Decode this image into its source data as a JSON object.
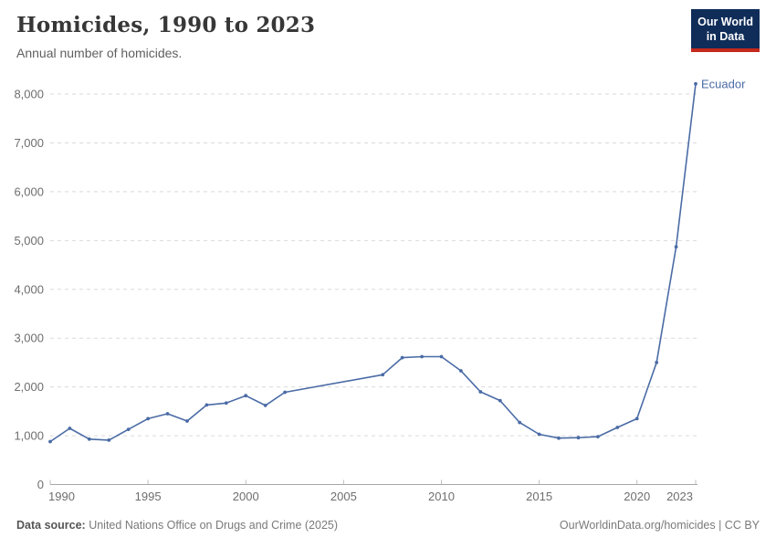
{
  "header": {
    "title": "Homicides, 1990 to 2023",
    "subtitle": "Annual number of homicides.",
    "logo_line1": "Our World",
    "logo_line2": "in Data"
  },
  "chart_data": {
    "type": "line",
    "title": "Homicides, 1990 to 2023",
    "subtitle": "Annual number of homicides.",
    "xlabel": "",
    "ylabel": "",
    "xlim": [
      1990,
      2023
    ],
    "ylim": [
      0,
      8000
    ],
    "xticks": [
      1990,
      1995,
      2000,
      2005,
      2010,
      2015,
      2020,
      2023
    ],
    "yticks": [
      0,
      1000,
      2000,
      3000,
      4000,
      5000,
      6000,
      7000,
      8000
    ],
    "grid": "horizontal-dashed",
    "legend_position": "end-of-line",
    "note": "no data markers between 2002 and 2007; straight interpolated segment",
    "series": [
      {
        "name": "Ecuador",
        "color": "#4a6ba5",
        "points": [
          [
            1990,
            880
          ],
          [
            1991,
            1150
          ],
          [
            1992,
            930
          ],
          [
            1993,
            910
          ],
          [
            1994,
            1130
          ],
          [
            1995,
            1350
          ],
          [
            1996,
            1450
          ],
          [
            1997,
            1300
          ],
          [
            1998,
            1630
          ],
          [
            1999,
            1670
          ],
          [
            2000,
            1820
          ],
          [
            2001,
            1620
          ],
          [
            2002,
            1890
          ],
          [
            2007,
            2250
          ],
          [
            2008,
            2600
          ],
          [
            2009,
            2620
          ],
          [
            2010,
            2620
          ],
          [
            2011,
            2330
          ],
          [
            2012,
            1900
          ],
          [
            2013,
            1720
          ],
          [
            2014,
            1270
          ],
          [
            2015,
            1030
          ],
          [
            2016,
            950
          ],
          [
            2017,
            960
          ],
          [
            2018,
            980
          ],
          [
            2019,
            1170
          ],
          [
            2020,
            1350
          ],
          [
            2021,
            2500
          ],
          [
            2022,
            4870
          ],
          [
            2023,
            8210
          ]
        ]
      }
    ]
  },
  "footer": {
    "source_label": "Data source:",
    "source_text": " United Nations Office on Drugs and Crime (2025)",
    "attribution": "OurWorldinData.org/homicides | CC BY"
  },
  "colors": {
    "line_blue": "#4a6ba5",
    "logo_navy": "#102d59",
    "logo_red": "#c5281c",
    "grid_gray": "#dadada",
    "axis_gray": "#a7a7a7",
    "text_gray": "#6e6e6e"
  }
}
